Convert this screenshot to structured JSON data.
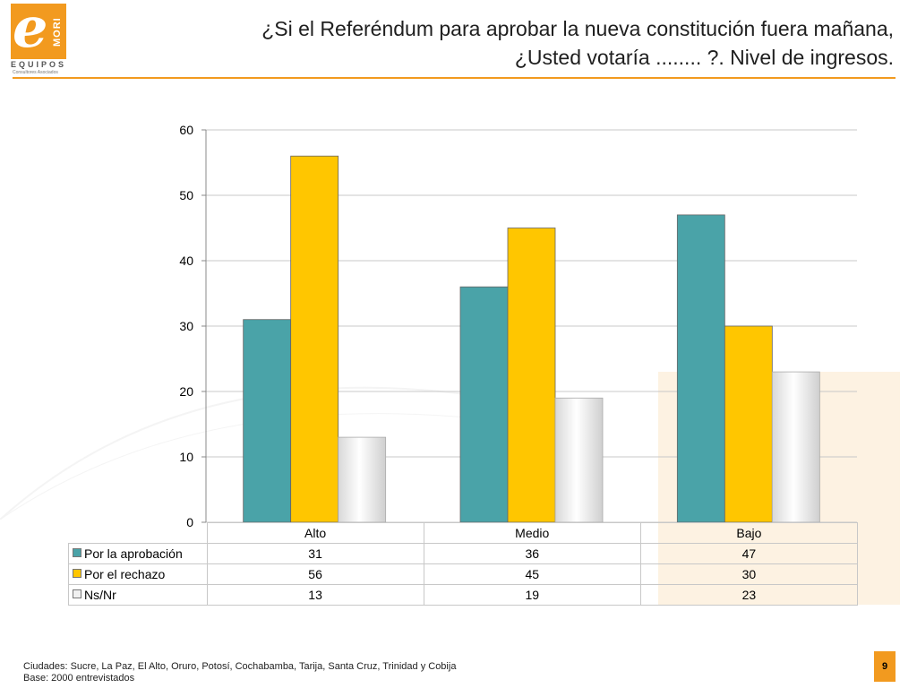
{
  "logo": {
    "mark": "e",
    "brand": "MORI",
    "name": "EQUIPOS",
    "tagline": "Consultores Asociados",
    "color": "#f29a1f"
  },
  "title": {
    "line1": "¿Si el Referéndum para aprobar la nueva constitución fuera mañana,",
    "line2": "¿Usted votaría ........ ?. Nivel de ingresos."
  },
  "chart_data": {
    "type": "bar",
    "categories": [
      "Alto",
      "Medio",
      "Bajo"
    ],
    "series": [
      {
        "name": "Por la aprobación",
        "values": [
          31,
          36,
          47
        ],
        "color": "#4aa3a8"
      },
      {
        "name": "Por el rechazo",
        "values": [
          56,
          45,
          30
        ],
        "color": "#ffc600"
      },
      {
        "name": "Ns/Nr",
        "values": [
          13,
          19,
          23
        ],
        "color": "#f0f0f0"
      }
    ],
    "ylim": [
      0,
      60
    ],
    "yticks": [
      0,
      10,
      20,
      30,
      40,
      50,
      60
    ],
    "grid": true,
    "legend": "data-table"
  },
  "footer": {
    "cities": "Ciudades: Sucre, La Paz, El Alto, Oruro, Potosí, Cochabamba, Tarija, Santa Cruz, Trinidad y Cobija",
    "base": "Base: 2000 entrevistados"
  },
  "page_number": "9"
}
